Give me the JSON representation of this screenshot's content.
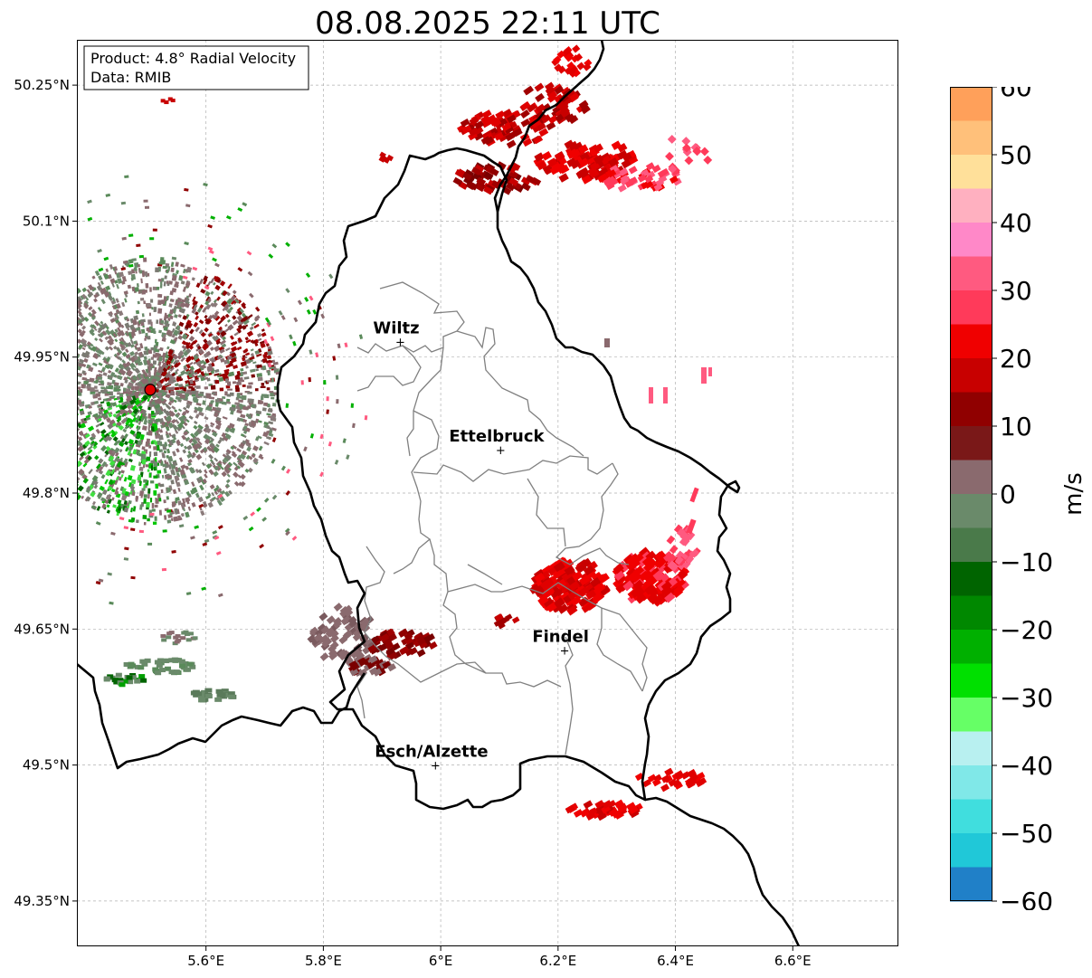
{
  "title": "08.08.2025 22:11 UTC",
  "info_box": {
    "line1": "Product: 4.8° Radial Velocity",
    "line2": "Data: RMIB"
  },
  "map": {
    "lon_range": [
      5.38,
      6.78
    ],
    "lat_range": [
      49.3,
      50.3
    ],
    "lon_ticks": [
      {
        "value": 5.6,
        "label": "5.6°E"
      },
      {
        "value": 5.8,
        "label": "5.8°E"
      },
      {
        "value": 6.0,
        "label": "6°E"
      },
      {
        "value": 6.2,
        "label": "6.2°E"
      },
      {
        "value": 6.4,
        "label": "6.4°E"
      },
      {
        "value": 6.6,
        "label": "6.6°E"
      }
    ],
    "lat_ticks": [
      {
        "value": 50.25,
        "label": "50.25°N"
      },
      {
        "value": 50.1,
        "label": "50.1°N"
      },
      {
        "value": 49.95,
        "label": "49.95°N"
      },
      {
        "value": 49.8,
        "label": "49.8°N"
      },
      {
        "value": 49.65,
        "label": "49.65°N"
      },
      {
        "value": 49.5,
        "label": "49.5°N"
      },
      {
        "value": 49.35,
        "label": "49.35°N"
      }
    ],
    "gridlines": true,
    "radar_site": {
      "lon": 5.505,
      "lat": 49.914,
      "color": "#e00000"
    },
    "cities": [
      {
        "name": "Wiltz",
        "lon": 5.932,
        "lat": 49.967
      },
      {
        "name": "Ettelbruck",
        "lon": 6.103,
        "lat": 49.848
      },
      {
        "name": "Findel",
        "lon": 6.212,
        "lat": 49.627
      },
      {
        "name": "Esch/Alzette",
        "lon": 5.992,
        "lat": 49.5
      }
    ]
  },
  "colorbar": {
    "label": "m/s",
    "range": [
      -60,
      60
    ],
    "ticks": [
      {
        "value": 60,
        "label": "60"
      },
      {
        "value": 50,
        "label": "50"
      },
      {
        "value": 40,
        "label": "40"
      },
      {
        "value": 30,
        "label": "30"
      },
      {
        "value": 20,
        "label": "20"
      },
      {
        "value": 10,
        "label": "10"
      },
      {
        "value": 0,
        "label": "0"
      },
      {
        "value": -10,
        "label": "−10"
      },
      {
        "value": -20,
        "label": "−20"
      },
      {
        "value": -30,
        "label": "−30"
      },
      {
        "value": -40,
        "label": "−40"
      },
      {
        "value": -50,
        "label": "−50"
      },
      {
        "value": -60,
        "label": "−60"
      }
    ],
    "colors": [
      {
        "min": 55,
        "max": 60,
        "color": "#ffa05a"
      },
      {
        "min": 50,
        "max": 55,
        "color": "#ffc07a"
      },
      {
        "min": 45,
        "max": 50,
        "color": "#ffe09a"
      },
      {
        "min": 40,
        "max": 45,
        "color": "#ffb0c0"
      },
      {
        "min": 35,
        "max": 40,
        "color": "#ff88c8"
      },
      {
        "min": 30,
        "max": 35,
        "color": "#ff5a80"
      },
      {
        "min": 25,
        "max": 30,
        "color": "#ff3a5a"
      },
      {
        "min": 20,
        "max": 25,
        "color": "#f00000"
      },
      {
        "min": 15,
        "max": 20,
        "color": "#c80000"
      },
      {
        "min": 10,
        "max": 15,
        "color": "#900000"
      },
      {
        "min": 5,
        "max": 10,
        "color": "#7a1818"
      },
      {
        "min": 0,
        "max": 5,
        "color": "#8a6a6e"
      },
      {
        "min": -5,
        "max": 0,
        "color": "#6a8a6a"
      },
      {
        "min": -10,
        "max": -5,
        "color": "#4a7a4a"
      },
      {
        "min": -15,
        "max": -10,
        "color": "#006400"
      },
      {
        "min": -20,
        "max": -15,
        "color": "#008800"
      },
      {
        "min": -25,
        "max": -20,
        "color": "#00b000"
      },
      {
        "min": -30,
        "max": -25,
        "color": "#00e000"
      },
      {
        "min": -35,
        "max": -30,
        "color": "#66ff66"
      },
      {
        "min": -40,
        "max": -35,
        "color": "#b8f0f0"
      },
      {
        "min": -45,
        "max": -40,
        "color": "#80e8e8"
      },
      {
        "min": -50,
        "max": -45,
        "color": "#40dede"
      },
      {
        "min": -55,
        "max": -50,
        "color": "#20c8d8"
      },
      {
        "min": -60,
        "max": -55,
        "color": "#2080c8"
      }
    ]
  }
}
